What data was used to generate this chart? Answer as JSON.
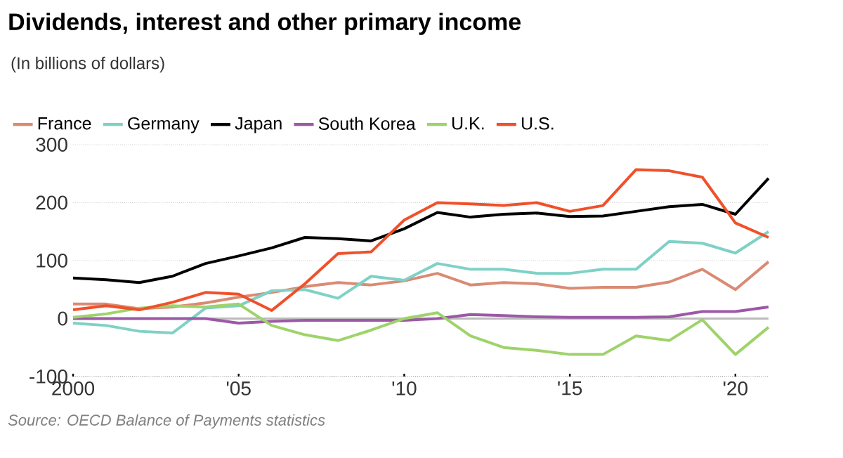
{
  "chart_data": {
    "type": "line",
    "title": "Dividends, interest and other primary income",
    "subtitle": "(In billions of dollars)",
    "x": [
      2000,
      2001,
      2002,
      2003,
      2004,
      2005,
      2006,
      2007,
      2008,
      2009,
      2010,
      2011,
      2012,
      2013,
      2014,
      2015,
      2016,
      2017,
      2018,
      2019,
      2020,
      2021
    ],
    "series": [
      {
        "name": "France",
        "color": "#d98b73",
        "values": [
          25,
          25,
          17,
          20,
          27,
          37,
          45,
          55,
          62,
          58,
          65,
          78,
          58,
          62,
          60,
          52,
          54,
          54,
          63,
          85,
          50,
          98
        ]
      },
      {
        "name": "Germany",
        "color": "#7fd1c6",
        "values": [
          -8,
          -12,
          -22,
          -25,
          18,
          22,
          48,
          50,
          35,
          73,
          66,
          95,
          85,
          85,
          78,
          78,
          85,
          85,
          133,
          130,
          113,
          150
        ]
      },
      {
        "name": "Japan",
        "color": "#000000",
        "values": [
          70,
          67,
          62,
          73,
          95,
          108,
          122,
          140,
          138,
          134,
          155,
          183,
          175,
          180,
          182,
          176,
          177,
          185,
          193,
          197,
          180,
          242
        ]
      },
      {
        "name": "South Korea",
        "color": "#9b59a6",
        "values": [
          0,
          0,
          0,
          0,
          0,
          -8,
          -5,
          -3,
          -3,
          -3,
          -3,
          0,
          7,
          5,
          3,
          2,
          2,
          2,
          3,
          12,
          12,
          20
        ]
      },
      {
        "name": "U.K.",
        "color": "#9ed36a",
        "values": [
          2,
          8,
          18,
          22,
          20,
          25,
          -12,
          -28,
          -38,
          -20,
          0,
          10,
          -30,
          -50,
          -55,
          -62,
          -62,
          -30,
          -38,
          -2,
          -62,
          -15
        ]
      },
      {
        "name": "U.S.",
        "color": "#f0502a",
        "values": [
          15,
          22,
          15,
          28,
          45,
          42,
          14,
          60,
          112,
          115,
          170,
          200,
          198,
          195,
          200,
          185,
          195,
          257,
          255,
          244,
          165,
          140
        ]
      }
    ],
    "xlim": [
      2000,
      2021
    ],
    "ylim": [
      -100,
      300
    ],
    "xticks": [
      {
        "value": 2000,
        "label": "2000"
      },
      {
        "value": 2005,
        "label": "'05"
      },
      {
        "value": 2010,
        "label": "'10"
      },
      {
        "value": 2015,
        "label": "'15"
      },
      {
        "value": 2020,
        "label": "'20"
      }
    ],
    "yticks": [
      -100,
      0,
      100,
      200,
      300
    ],
    "ref_lines": [
      {
        "axis": "y",
        "value": 0,
        "color": "#bbbbbb"
      }
    ],
    "grid": "y",
    "legend": "top",
    "line_style": "solid",
    "annotations": [
      "Source: OECD Balance of Payments statistics"
    ]
  }
}
